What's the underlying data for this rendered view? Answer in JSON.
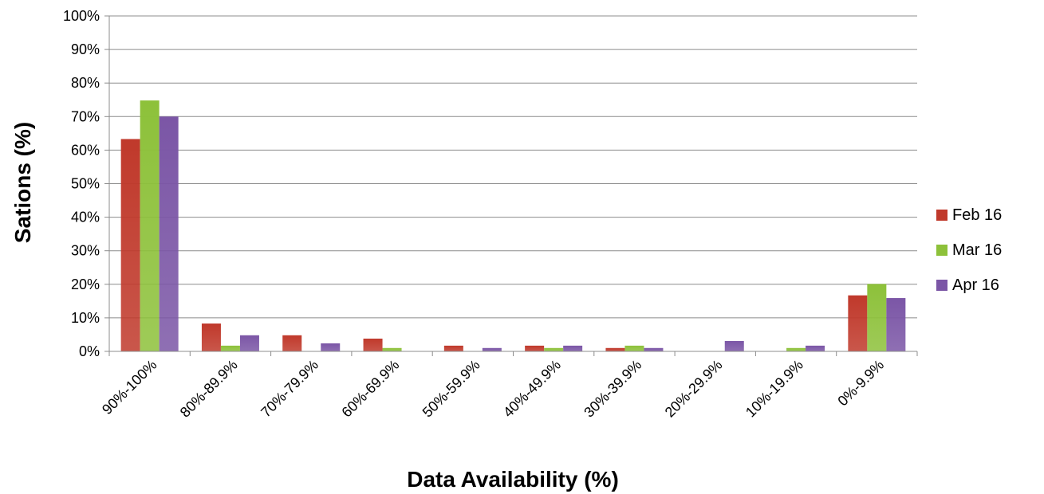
{
  "chart_data": {
    "type": "bar",
    "title": "",
    "xlabel": "Data Availability (%)",
    "ylabel": "Sations (%)",
    "ylim": [
      0,
      100
    ],
    "yticks": [
      "0%",
      "10%",
      "20%",
      "30%",
      "40%",
      "50%",
      "60%",
      "70%",
      "80%",
      "90%",
      "100%"
    ],
    "grid": true,
    "legend_position": "right",
    "categories": [
      "90%-100%",
      "80%-89.9%",
      "70%-79.9%",
      "60%-69.9%",
      "50%-59.9%",
      "40%-49.9%",
      "30%-39.9%",
      "20%-29.9%",
      "10%-19.9%",
      "0%-9.9%"
    ],
    "series": [
      {
        "name": "Feb 16",
        "color": "#c0392b",
        "values": [
          63.3,
          8.3,
          4.8,
          3.8,
          1.7,
          1.7,
          1.0,
          0,
          0,
          16.7
        ]
      },
      {
        "name": "Mar 16",
        "color": "#8dc13a",
        "values": [
          74.8,
          1.7,
          0,
          1.0,
          0,
          1.0,
          1.7,
          0,
          1.0,
          20.1
        ]
      },
      {
        "name": "Apr 16",
        "color": "#7b56a6",
        "values": [
          70.0,
          4.8,
          2.4,
          0,
          1.0,
          1.7,
          1.0,
          3.1,
          1.7,
          15.9
        ]
      }
    ]
  }
}
